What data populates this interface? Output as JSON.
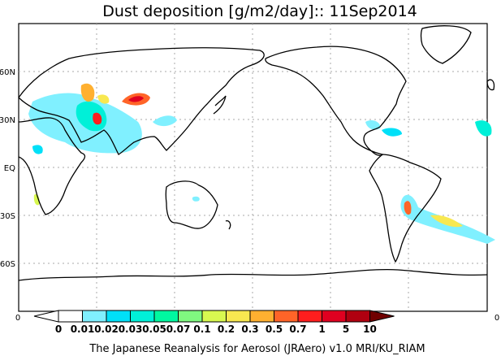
{
  "title": "Dust deposition [g/m2/day]:: 11Sep2014",
  "footer": "The Japanese Reanalysis for Aerosol (JRAero) v1.0 MRI/KU_RIAM",
  "map": {
    "projection": "cylindrical equidistant, 0-360E",
    "lat_labels": [
      "60N",
      "30N",
      "EQ",
      "30S",
      "60S"
    ],
    "x_axis_labels": [
      "0",
      "0"
    ],
    "grid": "dotted, 30 deg lat / 60 deg lon"
  },
  "colorbar": {
    "labels": [
      "0",
      "0.01",
      "0.02",
      "0.03",
      "0.05",
      "0.07",
      "0.1",
      "0.2",
      "0.3",
      "0.5",
      "0.7",
      "1",
      "5",
      "10"
    ],
    "colors": [
      "#ffffff",
      "#ffffff",
      "#80f0ff",
      "#00e0f8",
      "#00f0d8",
      "#00f8a0",
      "#80f880",
      "#d8f850",
      "#f8e850",
      "#ffb030",
      "#ff6428",
      "#ff1e1e",
      "#e00020",
      "#b00010",
      "#700000"
    ]
  }
}
